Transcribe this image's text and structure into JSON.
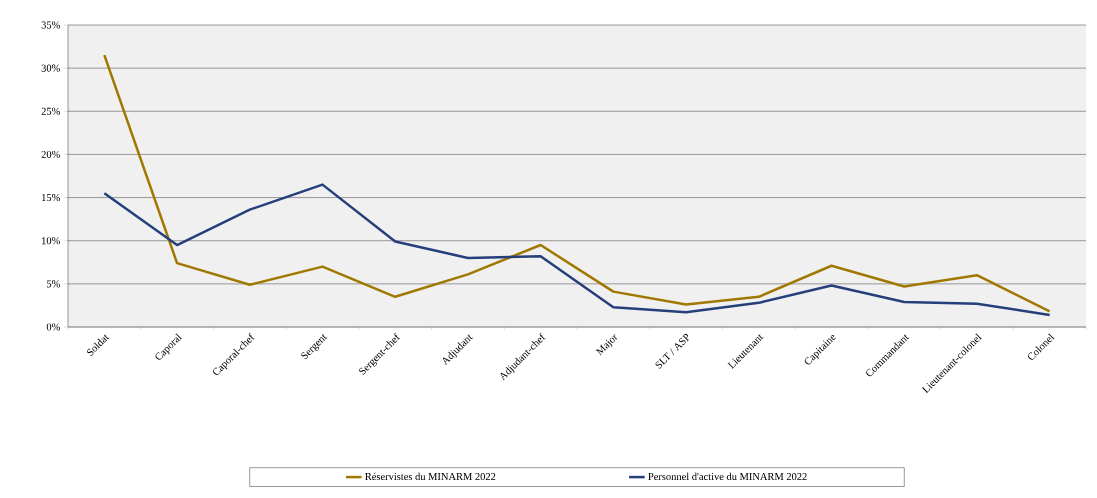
{
  "chart_data": {
    "type": "line",
    "categories": [
      "Soldat",
      "Caporal",
      "Caporal-chef",
      "Sergent",
      "Sergent-chef",
      "Adjudant",
      "Adjudant-chef",
      "Major",
      "SLT / ASP",
      "Lieutenant",
      "Capitaine",
      "Commandant",
      "Lieutenant-colonel",
      "Colonel"
    ],
    "series": [
      {
        "name": "Réservistes du MINARM 2022",
        "color": "#a07800",
        "values": [
          31.5,
          7.4,
          4.9,
          7.0,
          3.5,
          6.1,
          9.5,
          4.1,
          2.6,
          3.5,
          7.1,
          4.7,
          6.0,
          1.8
        ]
      },
      {
        "name": "Personnel d'active du MINARM 2022",
        "color": "#243f7a",
        "values": [
          15.5,
          9.5,
          13.6,
          16.5,
          9.9,
          8.0,
          8.2,
          2.3,
          1.7,
          2.8,
          4.8,
          2.9,
          2.7,
          1.4
        ]
      }
    ],
    "ylim": [
      0,
      35
    ],
    "yticks": [
      {
        "value": 0,
        "label": "0%"
      },
      {
        "value": 5,
        "label": "5%"
      },
      {
        "value": 10,
        "label": "10%"
      },
      {
        "value": 15,
        "label": "15%"
      },
      {
        "value": 20,
        "label": "20%"
      },
      {
        "value": 25,
        "label": "25%"
      },
      {
        "value": 30,
        "label": "30%"
      },
      {
        "value": 35,
        "label": "35%"
      }
    ],
    "grid": "y",
    "legend": "bottom",
    "marker": "none",
    "line_style": "solid"
  }
}
